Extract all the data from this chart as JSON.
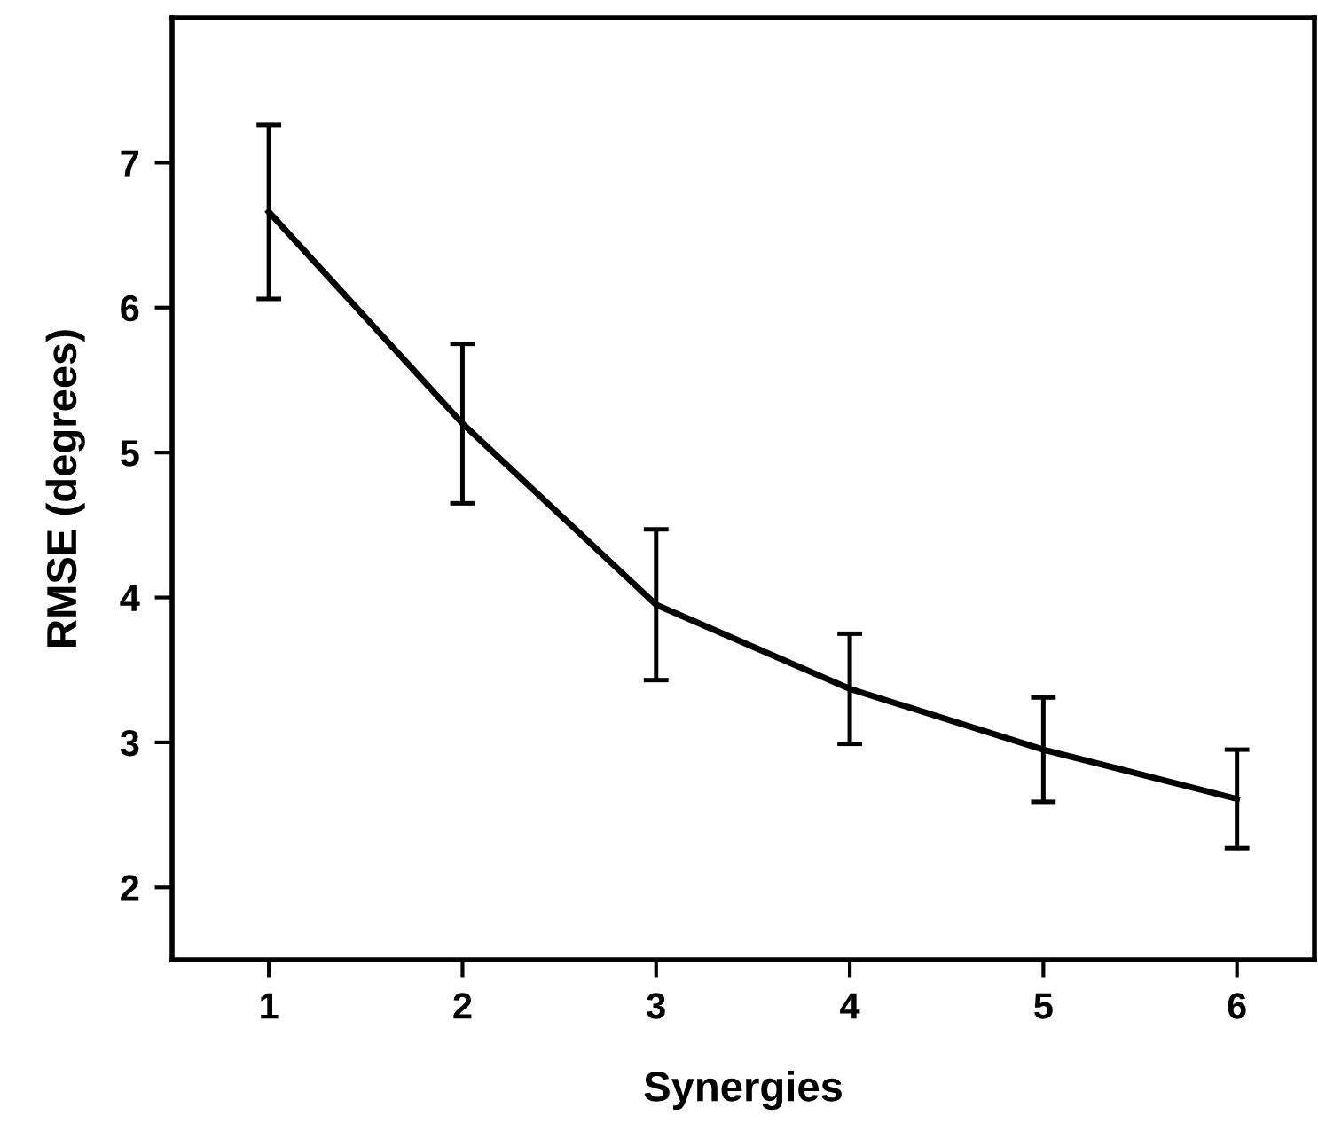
{
  "chart_data": {
    "type": "line",
    "xlabel": "Synergies",
    "ylabel": "RMSE (degrees)",
    "x": [
      1,
      2,
      3,
      4,
      5,
      6
    ],
    "series": [
      {
        "color": "#000000",
        "values": [
          6.66,
          5.2,
          3.95,
          3.37,
          2.95,
          2.61
        ],
        "errors": [
          0.6,
          0.55,
          0.52,
          0.38,
          0.36,
          0.34
        ]
      }
    ],
    "xlim": [
      0.5,
      6.4
    ],
    "xticks": [
      1,
      2,
      3,
      4,
      5,
      6
    ],
    "ylim": [
      1.5,
      8.0
    ],
    "yticks": [
      2,
      3,
      4,
      5,
      6,
      7
    ],
    "grid": false,
    "legend": false,
    "marker": "none",
    "line_style": "solid"
  }
}
